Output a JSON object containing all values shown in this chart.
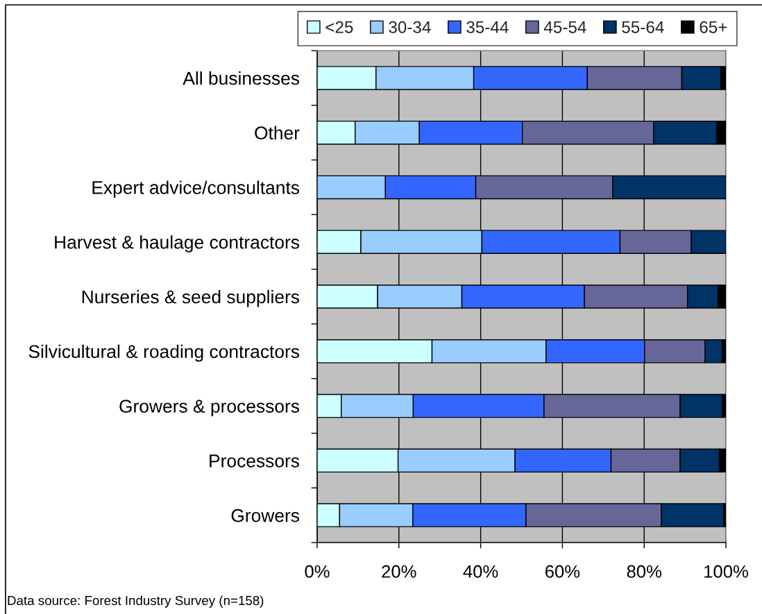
{
  "chart_data": {
    "type": "bar",
    "orientation": "horizontal",
    "stacked": true,
    "categories": [
      "All businesses",
      "Other",
      "Expert advice/consultants",
      "Harvest & haulage contractors",
      "Nurseries & seed suppliers",
      "Silvicultural & roading contractors",
      "Growers & processors",
      "Processors",
      "Growers"
    ],
    "series": [
      {
        "name": "<25",
        "color": "#ccffff",
        "values": [
          14.4,
          9.3,
          0,
          10.7,
          14.8,
          28.1,
          5.9,
          19.8,
          5.5
        ]
      },
      {
        "name": "30-34",
        "color": "#99ccff",
        "values": [
          23.9,
          15.7,
          16.7,
          29.6,
          20.6,
          27.9,
          17.6,
          28.6,
          17.9
        ]
      },
      {
        "name": "35-44",
        "color": "#3366ff",
        "values": [
          27.8,
          25.2,
          22.1,
          33.8,
          30.0,
          24.1,
          32.0,
          23.5,
          27.7
        ]
      },
      {
        "name": "45-54",
        "color": "#666699",
        "values": [
          23.1,
          32.1,
          33.5,
          17.4,
          25.2,
          14.8,
          33.3,
          16.9,
          33.1
        ]
      },
      {
        "name": "55-64",
        "color": "#003366",
        "values": [
          9.6,
          15.5,
          27.7,
          8.5,
          7.5,
          4.2,
          10.3,
          9.6,
          15.3
        ]
      },
      {
        "name": "65+",
        "color": "#000000",
        "values": [
          1.2,
          2.2,
          0,
          0,
          1.9,
          0.9,
          0.9,
          1.6,
          0.5
        ]
      }
    ],
    "xlim": [
      0,
      100
    ],
    "xticks": [
      {
        "value": 0,
        "label": "0%"
      },
      {
        "value": 20,
        "label": "20%"
      },
      {
        "value": 40,
        "label": "40%"
      },
      {
        "value": 60,
        "label": "60%"
      },
      {
        "value": 80,
        "label": "80%"
      },
      {
        "value": 100,
        "label": "100%"
      }
    ],
    "grid": "x",
    "legend": "top",
    "annotations": [
      "Data source: Forest Industry Survey (n=158)"
    ]
  }
}
